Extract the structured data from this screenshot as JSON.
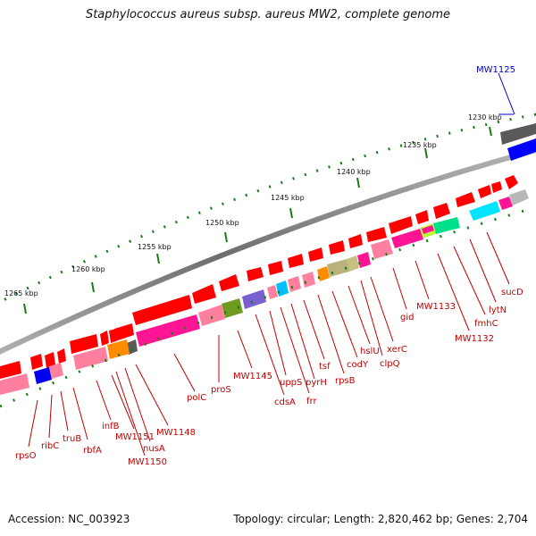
{
  "title": "Staphylococcus aureus subsp. aureus MW2, complete genome",
  "accession": "Accession: NC_003923",
  "summary": "Topology: circular; Length: 2,820,462 bp; Genes: 2,704",
  "scale_labels": [
    "1230 kbp",
    "1235 kbp",
    "1240 kbp",
    "1245 kbp",
    "1250 kbp",
    "1255 kbp",
    "1260 kbp",
    "1265 kbp"
  ],
  "gene_labels": [
    "MW1125",
    "sucD",
    "lytN",
    "fmhC",
    "MW1132",
    "MW1133",
    "gid",
    "xerC",
    "clpQ",
    "hslU",
    "codY",
    "rpsB",
    "tsf",
    "frr",
    "pyrH",
    "uppS",
    "cdsA",
    "MW1145",
    "proS",
    "polC",
    "MW1148",
    "nusA",
    "MW1150",
    "MW1151",
    "infB",
    "rbfA",
    "truB",
    "ribC",
    "rpsO"
  ],
  "colors": {
    "label": "#c00000",
    "highlight_label": "#0000cc",
    "backbone": "#8c8c8c",
    "tick": "#1a7a1a"
  }
}
